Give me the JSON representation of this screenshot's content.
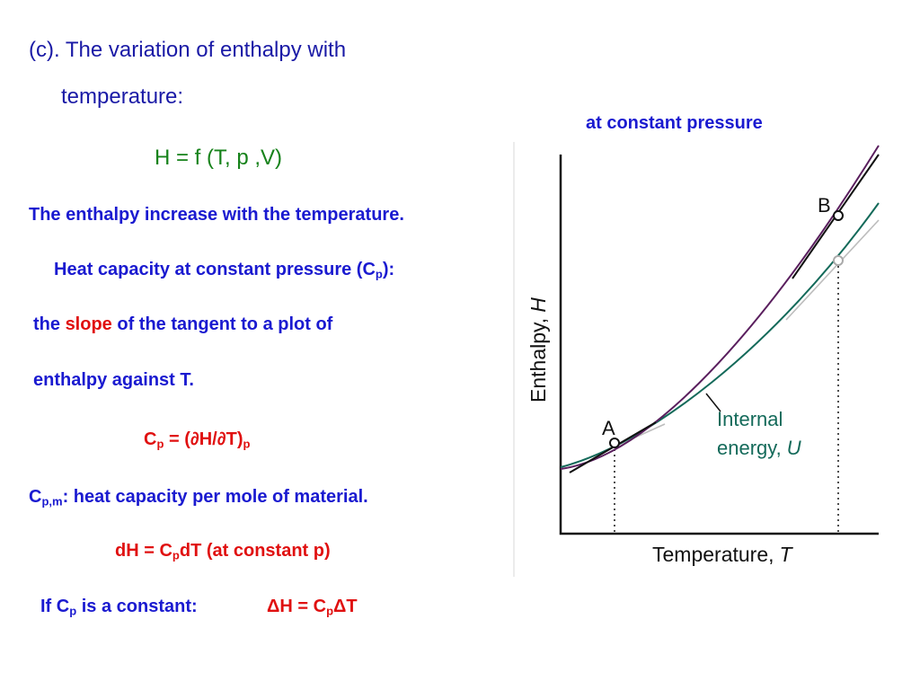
{
  "heading": {
    "line1": "(c). The variation of enthalpy with",
    "line2": "temperature:"
  },
  "function_eq": "H = f (T, p ,V)",
  "statement": "The enthalpy increase with the temperature.",
  "heat_capacity": {
    "prefix": "Heat capacity at constant pressure (C",
    "sub": "p",
    "suffix": "):"
  },
  "slope_line": {
    "before": "the ",
    "highlight": "slope",
    "after": " of  the tangent to a plot of"
  },
  "enthalpy_line": "enthalpy against T.",
  "cp_def": {
    "c": "C",
    "c_sub": "p",
    "mid": " = (∂H/∂T)",
    "end_sub": "p"
  },
  "cpm_line": {
    "c": "C",
    "sub": "p,m",
    "text": ": heat capacity per mole of material."
  },
  "dh_line": {
    "start": "dH = C",
    "sub": "p",
    "end": "dT (at constant p)"
  },
  "const_line": {
    "if_c": "If C",
    "if_sub": "p",
    "is_const": " is a constant:",
    "delta_start": "ΔH = C",
    "delta_sub": "p",
    "delta_end": "ΔT"
  },
  "figure": {
    "caption": "at constant pressure",
    "y_axis_label": "Enthalpy,",
    "y_axis_symbol": "H",
    "x_axis_label": "Temperature,",
    "x_axis_symbol": "T",
    "point_a": "A",
    "point_b": "B",
    "internal_line1": "Internal",
    "internal_line2": "energy,",
    "internal_symbol": "U",
    "colors": {
      "enthalpy": "#5a1f5e",
      "internal": "#146a5a",
      "tangent": "#111111",
      "axis": "#111111"
    }
  }
}
